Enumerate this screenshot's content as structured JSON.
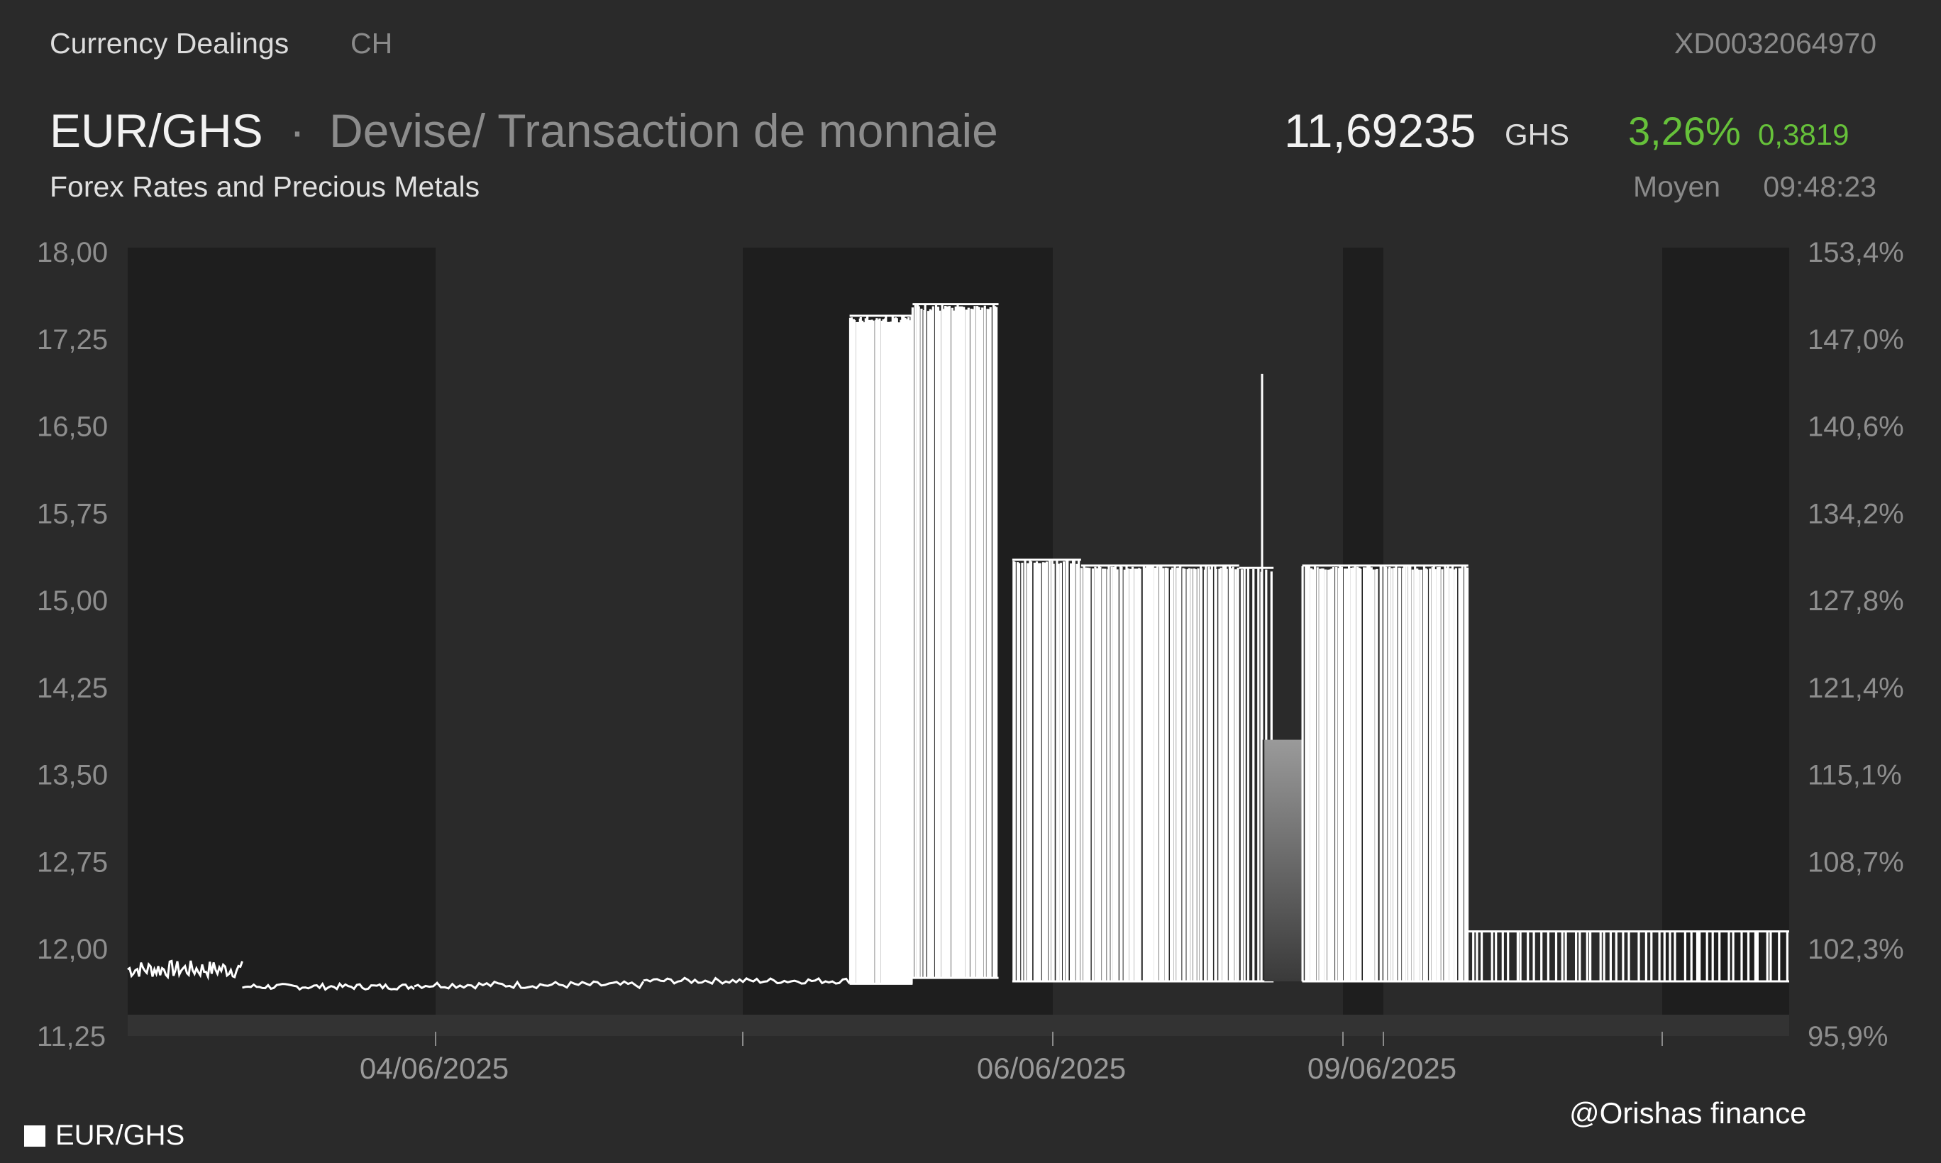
{
  "header": {
    "exchange": "Currency Dealings",
    "country": "CH",
    "isin": "XD0032064970",
    "pair": "EUR/GHS",
    "separator": "·",
    "description": "Devise/ Transaction de monnaie",
    "subtitle": "Forex Rates and Precious Metals",
    "price": "11,69235",
    "currency": "GHS",
    "change_pct": "3,26%",
    "change_abs": "0,3819",
    "price_type": "Moyen",
    "time": "09:48:23"
  },
  "watermark": "@Orishas finance",
  "colors": {
    "background": "#2a2a2a",
    "line": "#ffffff",
    "positive": "#66c13a"
  },
  "chart_data": {
    "type": "line",
    "title": "",
    "xlabel": "",
    "ylabel": "",
    "ylim": [
      11.25,
      18.0
    ],
    "y_ticks": [
      "18,00",
      "17,25",
      "16,50",
      "15,75",
      "15,00",
      "14,25",
      "13,50",
      "12,75",
      "12,00",
      "11,25"
    ],
    "y2_ticks": [
      "153,4%",
      "147,0%",
      "140,6%",
      "134,2%",
      "127,8%",
      "121,4%",
      "115,1%",
      "108,7%",
      "102,3%",
      "95,9%"
    ],
    "x_tick_labels": [
      "04/06/2025",
      "06/06/2025",
      "09/06/2025"
    ],
    "legend": {
      "position": "bottom-left",
      "entries": [
        "EUR/GHS"
      ]
    },
    "series": [
      {
        "name": "EUR/GHS",
        "segments": [
          {
            "kind": "line",
            "x0": 0.0,
            "x1": 0.1,
            "lo": 11.75,
            "hi": 11.9
          },
          {
            "kind": "line",
            "x0": 0.1,
            "x1": 0.25,
            "lo": 11.65,
            "hi": 11.7
          },
          {
            "kind": "line",
            "x0": 0.25,
            "x1": 0.45,
            "lo": 11.66,
            "hi": 11.72
          },
          {
            "kind": "line",
            "x0": 0.45,
            "x1": 0.63,
            "lo": 11.7,
            "hi": 11.75
          },
          {
            "kind": "spikes",
            "x0": 0.63,
            "x1": 0.685,
            "lo": 11.7,
            "hi": 17.45,
            "n": 40
          },
          {
            "kind": "spikes",
            "x0": 0.685,
            "x1": 0.76,
            "lo": 11.75,
            "hi": 17.55,
            "n": 42
          },
          {
            "kind": "spikes",
            "x0": 0.772,
            "x1": 0.832,
            "lo": 11.72,
            "hi": 15.35,
            "n": 30
          },
          {
            "kind": "spikes",
            "x0": 0.832,
            "x1": 0.97,
            "lo": 11.72,
            "hi": 15.3,
            "n": 75
          },
          {
            "kind": "spikes",
            "x0": 0.97,
            "x1": 1.0,
            "lo": 11.72,
            "hi": 15.28,
            "n": 8
          },
          {
            "kind": "spike",
            "x": 0.99,
            "lo": 13.8,
            "hi": 16.95
          },
          {
            "kind": "fill",
            "x0": 0.992,
            "x1": 1.025,
            "lo": 11.72,
            "hi": 13.8
          },
          {
            "kind": "spikes",
            "x0": 1.025,
            "x1": 1.17,
            "lo": 11.72,
            "hi": 15.3,
            "n": 80
          },
          {
            "kind": "spikes",
            "x0": 1.17,
            "x1": 1.45,
            "lo": 11.72,
            "hi": 12.15,
            "n": 50
          }
        ]
      }
    ]
  }
}
